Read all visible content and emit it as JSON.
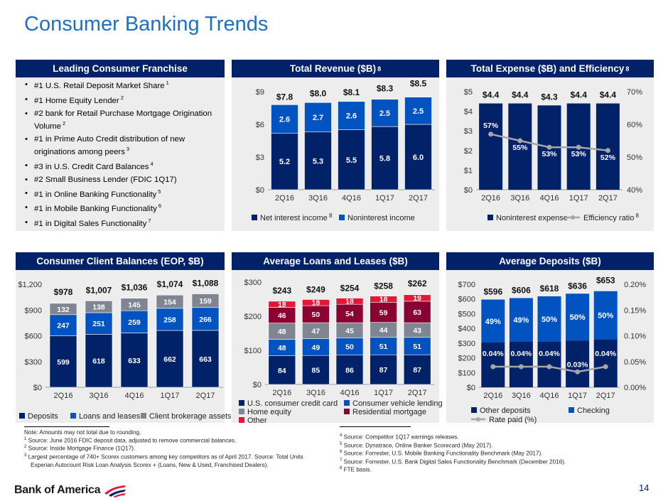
{
  "title": "Consumer Banking Trends",
  "colors": {
    "navy": "#012169",
    "blue": "#0053c1",
    "gray": "#7f8591",
    "crimson": "#8a0031",
    "red": "#e31837",
    "line": "#a6a6a6",
    "panel": "#ededed",
    "accent": "#1f6fc2"
  },
  "franchise": {
    "header": "Leading Consumer Franchise",
    "bullets": [
      {
        "text": "#1 U.S. Retail Deposit Market Share",
        "sup": "1"
      },
      {
        "text": "#1 Home Equity Lender",
        "sup": "2"
      },
      {
        "text": "#2 bank for Retail Purchase Mortgage Origination Volume",
        "sup": "2"
      },
      {
        "text": "#1 in Prime Auto Credit distribution of new originations among peers",
        "sup": "3"
      },
      {
        "text": "#3 in U.S. Credit Card Balances",
        "sup": "4"
      },
      {
        "text": "#2 Small Business Lender (FDIC 1Q17)",
        "sup": ""
      },
      {
        "text": "#1 in Online Banking Functionality",
        "sup": "5"
      },
      {
        "text": "#1 in Mobile Banking Functionality",
        "sup": "6"
      },
      {
        "text": "#1 in Digital Sales Functionality",
        "sup": "7"
      }
    ]
  },
  "headers": {
    "revenue": "Total Revenue ($B)",
    "revenue_sup": "8",
    "expense": "Total Expense ($B) and Efficiency",
    "expense_sup": "8",
    "balances": "Consumer Client Balances (EOP, $B)",
    "loans": "Average Loans and Leases ($B)",
    "deposits": "Average Deposits ($B)"
  },
  "chart_data": [
    {
      "id": "revenue",
      "type": "bar",
      "stacked": true,
      "title": "Total Revenue ($B)",
      "categories": [
        "2Q16",
        "3Q16",
        "4Q16",
        "1Q17",
        "2Q17"
      ],
      "series": [
        {
          "name": "Net interest income",
          "sup": "8",
          "color": "#012169",
          "values": [
            5.2,
            5.3,
            5.5,
            5.8,
            6.0
          ],
          "labels": [
            "5.2",
            "5.3",
            "5.5",
            "5.8",
            "6.0"
          ]
        },
        {
          "name": "Noninterest income",
          "sup": "",
          "color": "#0053c1",
          "values": [
            2.6,
            2.7,
            2.6,
            2.5,
            2.5
          ],
          "labels": [
            "2.6",
            "2.7",
            "2.6",
            "2.5",
            "2.5"
          ]
        }
      ],
      "totals": [
        "$7.8",
        "$8.0",
        "$8.1",
        "$8.3",
        "$8.5"
      ],
      "ylim": [
        0,
        9
      ],
      "yticks": [
        "$0",
        "$3",
        "$6",
        "$9"
      ]
    },
    {
      "id": "expense",
      "type": "bar+line",
      "title": "Total Expense ($B) and Efficiency",
      "categories": [
        "2Q16",
        "3Q16",
        "4Q16",
        "1Q17",
        "2Q17"
      ],
      "series": [
        {
          "name": "Noninterest expense",
          "sup": "",
          "color": "#012169",
          "values": [
            4.4,
            4.4,
            4.3,
            4.4,
            4.4
          ],
          "labels": [
            "$4.4",
            "$4.4",
            "$4.3",
            "$4.4",
            "$4.4"
          ]
        },
        {
          "name": "Efficiency ratio",
          "sup": "8",
          "color": "#a6a6a6",
          "axis": "right",
          "values": [
            57,
            55,
            53,
            53,
            52
          ],
          "labels": [
            "57%",
            "55%",
            "53%",
            "53%",
            "52%"
          ]
        }
      ],
      "ylim": [
        0,
        5
      ],
      "yticks": [
        "$0",
        "$1",
        "$2",
        "$3",
        "$4",
        "$5"
      ],
      "y2lim": [
        40,
        70
      ],
      "y2ticks": [
        "40%",
        "50%",
        "60%",
        "70%"
      ]
    },
    {
      "id": "balances",
      "type": "bar",
      "stacked": true,
      "title": "Consumer Client Balances (EOP, $B)",
      "categories": [
        "2Q16",
        "3Q16",
        "4Q16",
        "1Q17",
        "2Q17"
      ],
      "series": [
        {
          "name": "Deposits",
          "color": "#012169",
          "values": [
            599,
            618,
            633,
            662,
            663
          ],
          "labels": [
            "599",
            "618",
            "633",
            "662",
            "663"
          ]
        },
        {
          "name": "Loans and leases",
          "color": "#0053c1",
          "values": [
            247,
            251,
            259,
            258,
            266
          ],
          "labels": [
            "247",
            "251",
            "259",
            "258",
            "266"
          ]
        },
        {
          "name": "Client brokerage assets",
          "color": "#7f8591",
          "values": [
            132,
            138,
            145,
            154,
            159
          ],
          "labels": [
            "132",
            "138",
            "145",
            "154",
            "159"
          ]
        }
      ],
      "totals": [
        "$978",
        "$1,007",
        "$1,036",
        "$1,074",
        "$1,088"
      ],
      "ylim": [
        0,
        1200
      ],
      "yticks": [
        "$0",
        "$300",
        "$600",
        "$900",
        "$1,200"
      ]
    },
    {
      "id": "loans",
      "type": "bar",
      "stacked": true,
      "title": "Average Loans and Leases ($B)",
      "categories": [
        "2Q16",
        "3Q16",
        "4Q16",
        "1Q17",
        "2Q17"
      ],
      "series": [
        {
          "name": "U.S. consumer credit card",
          "color": "#012169",
          "values": [
            84,
            85,
            86,
            87,
            87
          ],
          "labels": [
            "84",
            "85",
            "86",
            "87",
            "87"
          ]
        },
        {
          "name": "Consumer vehicle lending",
          "color": "#0053c1",
          "values": [
            48,
            49,
            50,
            51,
            51
          ],
          "labels": [
            "48",
            "49",
            "50",
            "51",
            "51"
          ]
        },
        {
          "name": "Home equity",
          "color": "#7f8591",
          "values": [
            48,
            47,
            45,
            44,
            43
          ],
          "labels": [
            "48",
            "47",
            "45",
            "44",
            "43"
          ]
        },
        {
          "name": "Residential mortgage",
          "color": "#8a0031",
          "values": [
            46,
            50,
            54,
            59,
            63
          ],
          "labels": [
            "46",
            "50",
            "54",
            "59",
            "63"
          ]
        },
        {
          "name": "Other",
          "color": "#e31837",
          "values": [
            18,
            18,
            18,
            18,
            19
          ],
          "labels": [
            "18",
            "18",
            "18",
            "18",
            "19"
          ]
        }
      ],
      "totals": [
        "$243",
        "$249",
        "$254",
        "$258",
        "$262"
      ],
      "ylim": [
        0,
        300
      ],
      "yticks": [
        "$0",
        "$100",
        "$200",
        "$300"
      ]
    },
    {
      "id": "deposits",
      "type": "bar+line",
      "stacked": true,
      "title": "Average Deposits ($B)",
      "categories": [
        "2Q16",
        "3Q16",
        "4Q16",
        "1Q17",
        "2Q17"
      ],
      "series": [
        {
          "name": "Other deposits",
          "color": "#012169",
          "values": [
            304,
            309,
            309,
            318,
            327
          ]
        },
        {
          "name": "Checking",
          "color": "#0053c1",
          "values": [
            292,
            297,
            309,
            318,
            326
          ],
          "labels": [
            "49%",
            "49%",
            "50%",
            "50%",
            "50%"
          ]
        },
        {
          "name": "Rate paid (%)",
          "color": "#a6a6a6",
          "axis": "right",
          "values": [
            0.04,
            0.04,
            0.04,
            0.03,
            0.04
          ],
          "labels": [
            "0.04%",
            "0.04%",
            "0.04%",
            "0.03%",
            "0.04%"
          ]
        }
      ],
      "totals": [
        "$596",
        "$606",
        "$618",
        "$636",
        "$653"
      ],
      "ylim": [
        0,
        700
      ],
      "yticks": [
        "$0",
        "$100",
        "$200",
        "$300",
        "$400",
        "$500",
        "$600",
        "$700"
      ],
      "y2lim": [
        0,
        0.2
      ],
      "y2ticks": [
        "0.00%",
        "0.05%",
        "0.10%",
        "0.15%",
        "0.20%"
      ]
    }
  ],
  "footnotes_left": [
    {
      "sup": "",
      "text": "Note: Amounts may not total due to rounding."
    },
    {
      "sup": "1",
      "text": "Source: June 2016 FDIC deposit data, adjusted to remove commercial balances."
    },
    {
      "sup": "2",
      "text": "Source: Inside Mortgage Finance (1Q17)."
    },
    {
      "sup": "3",
      "text": "Largest percentage of 740+ Scorex customers among key competitors as of April 2017. Source: Total Units"
    },
    {
      "sup": "",
      "text": "Experian Autocount Risk Loan Analysis Scorex + (Loans, New & Used, Franchised Dealers).",
      "indent": true
    }
  ],
  "footnotes_right": [
    {
      "sup": "4",
      "text": "Source: Competitor 1Q17 earnings releases."
    },
    {
      "sup": "5",
      "text": "Source: Dynatrace, Online Banker Scorecard (May 2017)."
    },
    {
      "sup": "6",
      "text": "Source: Forrester, U.S. Mobile Banking Functionality Benchmark (May 2017)."
    },
    {
      "sup": "7",
      "text": "Source: Forrester, U.S. Bank Digital Sales Functionality Benchmark (December 2016)."
    },
    {
      "sup": "8",
      "text": "FTE basis."
    }
  ],
  "logo": "Bank of America",
  "page_number": "14"
}
